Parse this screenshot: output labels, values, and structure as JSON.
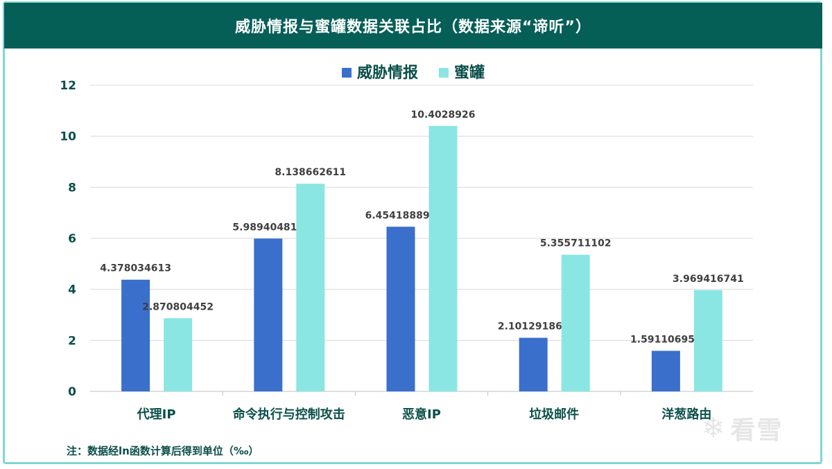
{
  "header": {
    "title": "威胁情报与蜜罐数据关联占比（数据来源“谛听”）"
  },
  "footnote": "注：数据经ln函数计算后得到单位（‰）",
  "watermark": {
    "text": "看雪",
    "logo_icon": "snowflake-icon"
  },
  "colors": {
    "header_bg": "#055f57",
    "frame_border": "#7fd6d3",
    "series_threat": "#3a6fcb",
    "series_honeypot": "#8ae6e2",
    "axis_text": "#0b4f4a",
    "grid": "#d9d9d9"
  },
  "chart_data": {
    "type": "bar",
    "title": "威胁情报与蜜罐数据关联占比（数据来源“谛听”）",
    "xlabel": "",
    "ylabel": "",
    "ylim": [
      0,
      12
    ],
    "yticks": [
      "0",
      "2",
      "4",
      "6",
      "8",
      "10",
      "12"
    ],
    "grid": true,
    "legend_position": "top-center",
    "categories": [
      "代理IP",
      "命令执行与控制攻击",
      "恶意IP",
      "垃圾邮件",
      "洋葱路由"
    ],
    "series": [
      {
        "name": "威胁情报",
        "values": [
          4.378034613,
          5.989404814,
          6.454188896,
          2.101291864,
          1.591106956
        ],
        "labels": [
          "4.378034613",
          "5.989404814",
          "6.454188896",
          "2.101291864",
          "1.591106956"
        ]
      },
      {
        "name": "蜜罐",
        "values": [
          2.870804452,
          8.138662611,
          10.4028926,
          5.355711102,
          3.969416741
        ],
        "labels": [
          "2.870804452",
          "8.138662611",
          "10.4028926",
          "5.355711102",
          "3.969416741"
        ]
      }
    ]
  }
}
